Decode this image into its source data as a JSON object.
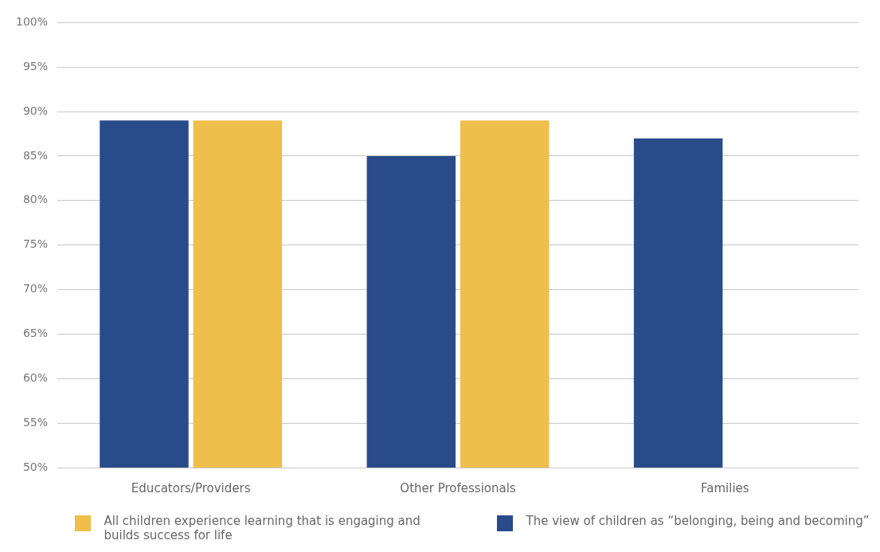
{
  "chart_data": {
    "type": "bar",
    "categories": [
      "Educators/Providers",
      "Other Professionals",
      "Families"
    ],
    "series": [
      {
        "name": "The view of children as “belonging, being and becoming”",
        "color": "#294b8a",
        "values": [
          89,
          85,
          87
        ]
      },
      {
        "name": "All children experience learning that is engaging and builds success for life",
        "color": "#f0be4a",
        "values": [
          89,
          89,
          null
        ]
      }
    ],
    "ylim": [
      50,
      100
    ],
    "yticks": [
      {
        "value": 50,
        "label": "50%"
      },
      {
        "value": 55,
        "label": "55%"
      },
      {
        "value": 60,
        "label": "60%"
      },
      {
        "value": 65,
        "label": "65%"
      },
      {
        "value": 70,
        "label": "70%"
      },
      {
        "value": 75,
        "label": "75%"
      },
      {
        "value": 80,
        "label": "80%"
      },
      {
        "value": 85,
        "label": "85%"
      },
      {
        "value": 90,
        "label": "90%"
      },
      {
        "value": 95,
        "label": "95%"
      },
      {
        "value": 100,
        "label": "100%"
      }
    ],
    "grid": "y",
    "legend": "bottom"
  }
}
